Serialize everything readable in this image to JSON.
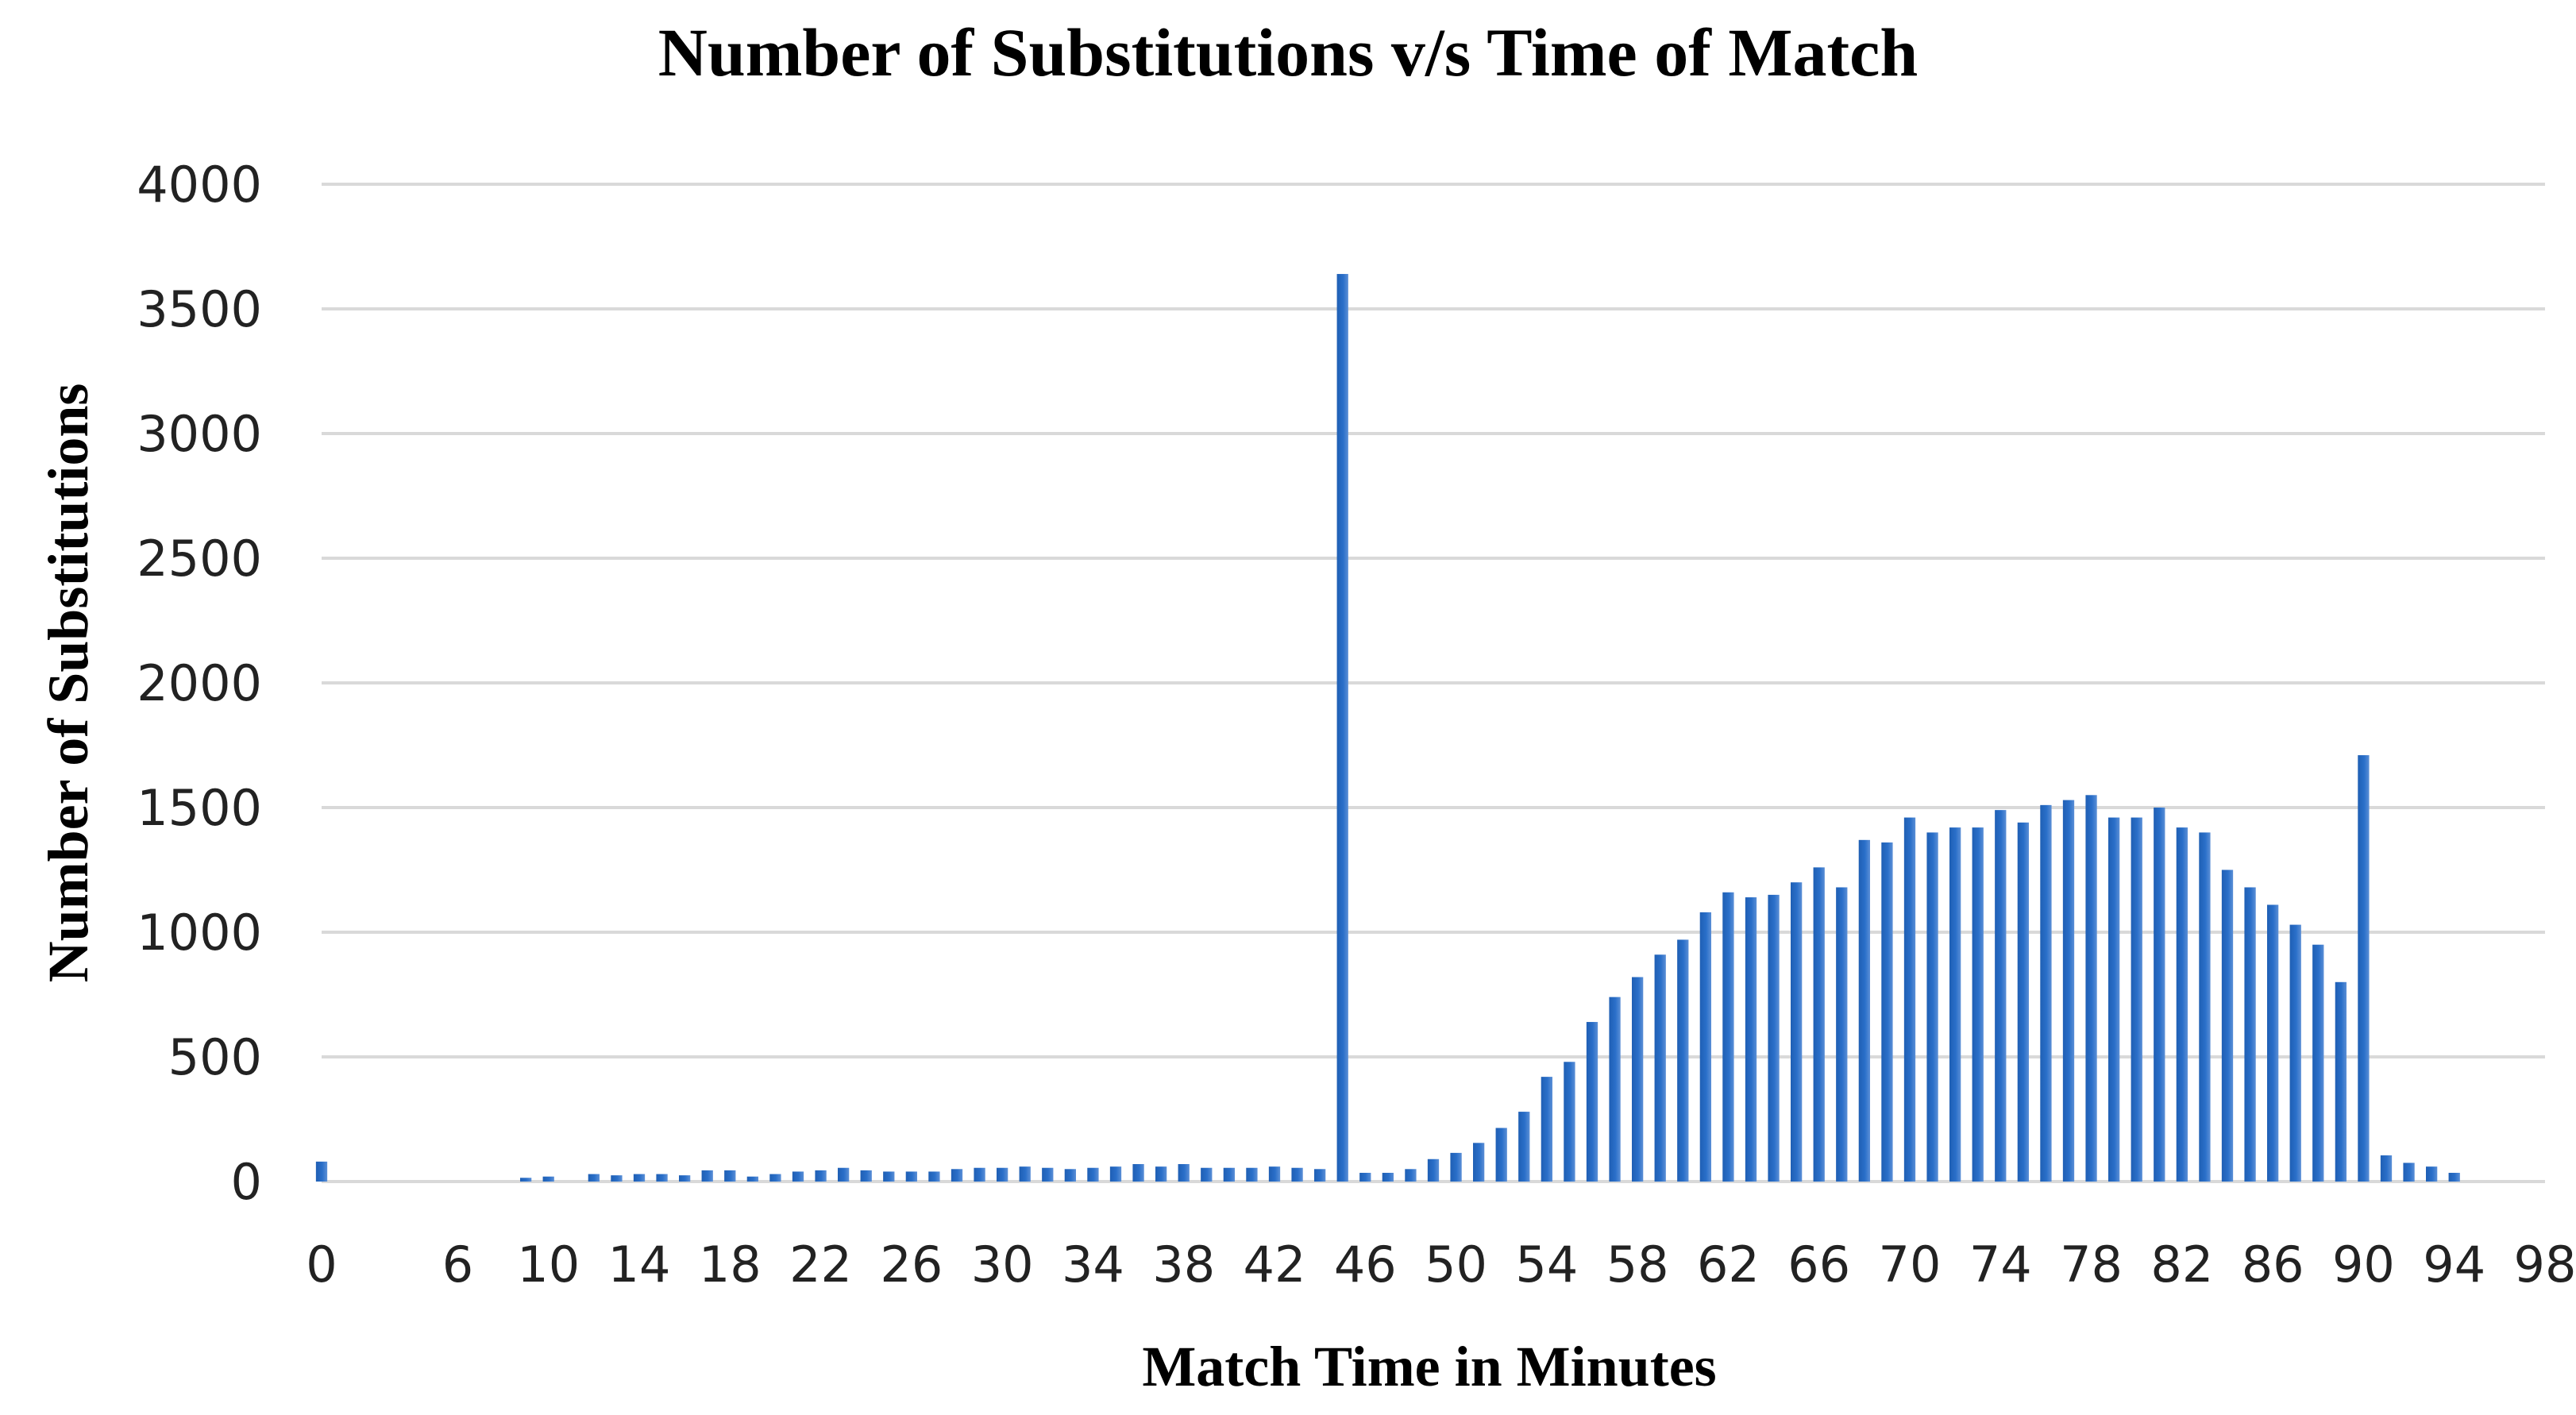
{
  "chart_data": {
    "type": "bar",
    "title": "Number of Substitutions v/s  Time  of Match",
    "xlabel": "Match Time in Minutes",
    "ylabel": "Number of Substitutions",
    "ylim": [
      0,
      4000
    ],
    "xlim": [
      0,
      98
    ],
    "y_ticks": [
      "0",
      "500",
      "1000",
      "1500",
      "2000",
      "2500",
      "3000",
      "3500",
      "4000"
    ],
    "y_tick_values": [
      0,
      500,
      1000,
      1500,
      2000,
      2500,
      3000,
      3500,
      4000
    ],
    "x_ticks": [
      "0",
      "6",
      "10",
      "14",
      "18",
      "22",
      "26",
      "30",
      "34",
      "38",
      "42",
      "46",
      "50",
      "54",
      "58",
      "62",
      "66",
      "70",
      "74",
      "78",
      "82",
      "86",
      "90",
      "94",
      "98"
    ],
    "grid": true,
    "legend": "none",
    "bar_color": "#2a6fc9",
    "series": [
      {
        "name": "Substitutions",
        "x": [
          0,
          9,
          10,
          12,
          13,
          14,
          15,
          16,
          17,
          18,
          19,
          20,
          21,
          22,
          23,
          24,
          25,
          26,
          27,
          28,
          29,
          30,
          31,
          32,
          33,
          34,
          35,
          36,
          37,
          38,
          39,
          40,
          41,
          42,
          43,
          44,
          45,
          46,
          47,
          48,
          49,
          50,
          51,
          52,
          53,
          54,
          55,
          56,
          57,
          58,
          59,
          60,
          61,
          62,
          63,
          64,
          65,
          66,
          67,
          68,
          69,
          70,
          71,
          72,
          73,
          74,
          75,
          76,
          77,
          78,
          79,
          80,
          81,
          82,
          83,
          84,
          85,
          86,
          87,
          88,
          89,
          90,
          91,
          92,
          93,
          94
        ],
        "values": [
          80,
          15,
          20,
          30,
          25,
          30,
          30,
          25,
          45,
          45,
          20,
          30,
          40,
          45,
          55,
          45,
          40,
          40,
          40,
          50,
          55,
          55,
          60,
          55,
          50,
          55,
          60,
          70,
          60,
          70,
          55,
          55,
          55,
          60,
          55,
          50,
          3640,
          35,
          35,
          50,
          90,
          115,
          155,
          215,
          280,
          420,
          480,
          640,
          740,
          820,
          910,
          970,
          1080,
          1160,
          1140,
          1150,
          1200,
          1260,
          1180,
          1370,
          1360,
          1460,
          1400,
          1420,
          1420,
          1490,
          1440,
          1510,
          1530,
          1550,
          1460,
          1460,
          1500,
          1420,
          1400,
          1250,
          1180,
          1110,
          1030,
          950,
          800,
          1710,
          105,
          75,
          60,
          35
        ]
      }
    ]
  }
}
